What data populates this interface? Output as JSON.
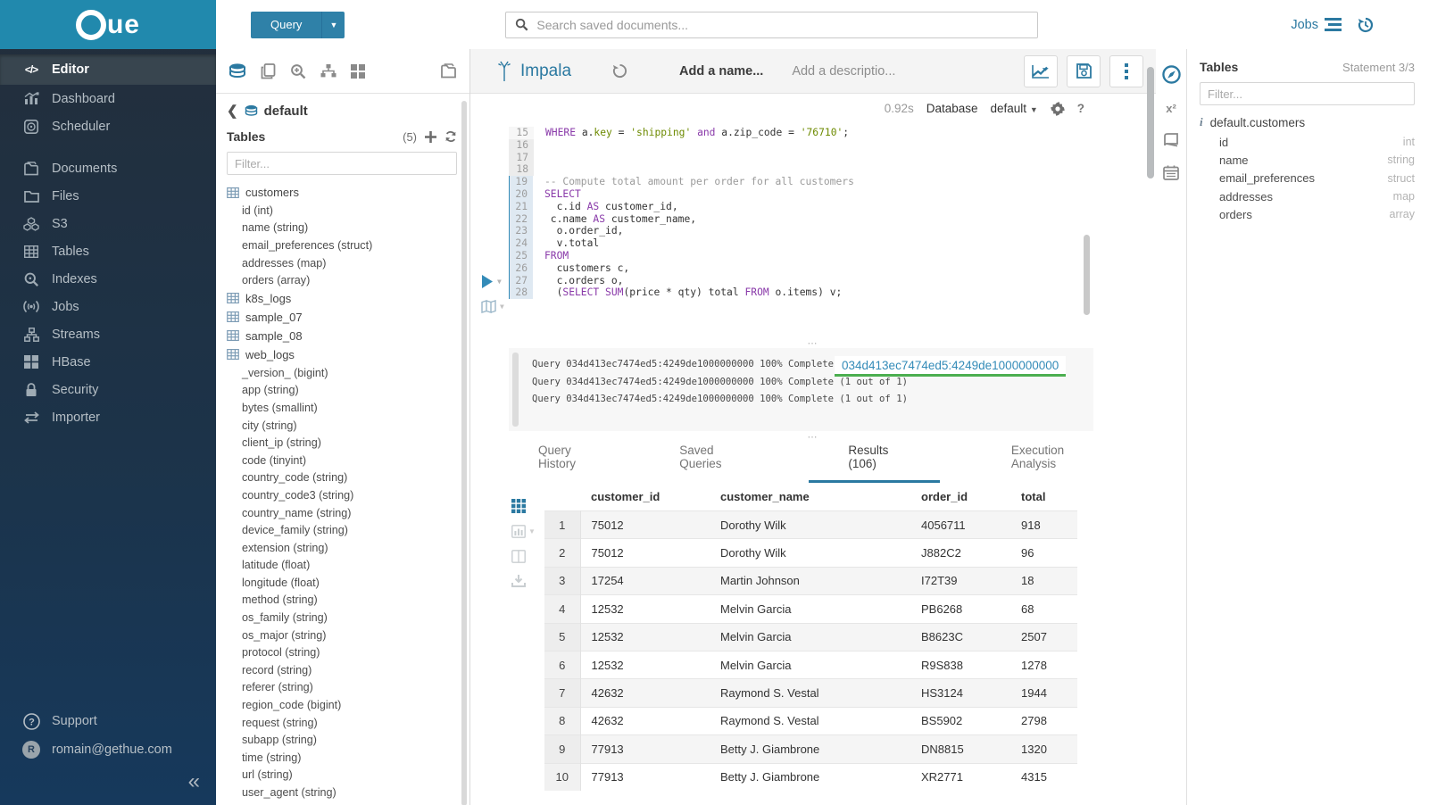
{
  "app": {
    "logo_text": "ue",
    "accent": "#338bb8",
    "masthead_color": "#2189ad"
  },
  "sidebar": {
    "items": [
      {
        "label": "Editor",
        "icon": "code-icon",
        "active": true
      },
      {
        "label": "Dashboard",
        "icon": "dashboard-icon",
        "active": false
      },
      {
        "label": "Scheduler",
        "icon": "scheduler-icon",
        "active": false
      },
      {
        "label": "Documents",
        "icon": "documents-icon",
        "active": false,
        "gap_before": true
      },
      {
        "label": "Files",
        "icon": "files-icon",
        "active": false
      },
      {
        "label": "S3",
        "icon": "s3-icon",
        "active": false
      },
      {
        "label": "Tables",
        "icon": "tables-icon",
        "active": false
      },
      {
        "label": "Indexes",
        "icon": "indexes-icon",
        "active": false
      },
      {
        "label": "Jobs",
        "icon": "jobs-icon",
        "active": false
      },
      {
        "label": "Streams",
        "icon": "streams-icon",
        "active": false
      },
      {
        "label": "HBase",
        "icon": "hbase-icon",
        "active": false
      },
      {
        "label": "Security",
        "icon": "security-icon",
        "active": false
      },
      {
        "label": "Importer",
        "icon": "importer-icon",
        "active": false
      }
    ],
    "footer": [
      {
        "label": "Support",
        "icon": "help-icon"
      },
      {
        "label": "romain@gethue.com",
        "icon": "avatar",
        "avatar_letter": "R"
      }
    ],
    "collapse_glyph": "«"
  },
  "topbar": {
    "query_button": "Query",
    "search_placeholder": "Search saved documents...",
    "jobs_label": "Jobs"
  },
  "assist_left": {
    "breadcrumb": "default",
    "title": "Tables",
    "count": "(5)",
    "filter_placeholder": "Filter...",
    "tree": [
      {
        "name": "customers",
        "columns": [
          "id (int)",
          "name (string)",
          "email_preferences (struct)",
          "addresses (map)",
          "orders (array)"
        ]
      },
      {
        "name": "k8s_logs",
        "columns": []
      },
      {
        "name": "sample_07",
        "columns": []
      },
      {
        "name": "sample_08",
        "columns": []
      },
      {
        "name": "web_logs",
        "columns": [
          "_version_ (bigint)",
          "app (string)",
          "bytes (smallint)",
          "city (string)",
          "client_ip (string)",
          "code (tinyint)",
          "country_code (string)",
          "country_code3 (string)",
          "country_name (string)",
          "device_family (string)",
          "extension (string)",
          "latitude (float)",
          "longitude (float)",
          "method (string)",
          "os_family (string)",
          "os_major (string)",
          "protocol (string)",
          "record (string)",
          "referer (string)",
          "region_code (bigint)",
          "request (string)",
          "subapp (string)",
          "time (string)",
          "url (string)",
          "user_agent (string)"
        ]
      }
    ]
  },
  "editor": {
    "engine": "Impala",
    "name_placeholder": "Add a name...",
    "desc_placeholder": "Add a descriptio...",
    "exec_time": "0.92s",
    "database_label": "Database",
    "database_value": "default",
    "lines": [
      {
        "n": 15,
        "g": "",
        "seg": [
          [
            "k",
            "WHERE"
          ],
          [
            "t",
            " a."
          ],
          [
            "o",
            "key"
          ],
          [
            "t",
            " = "
          ],
          [
            "s",
            "'shipping'"
          ],
          [
            "t",
            " "
          ],
          [
            "k",
            "and"
          ],
          [
            "t",
            " a.zip_code = "
          ],
          [
            "s",
            "'76710'"
          ],
          [
            "t",
            ";"
          ]
        ]
      },
      {
        "n": 16,
        "g": "dim",
        "seg": []
      },
      {
        "n": 17,
        "g": "dim",
        "seg": []
      },
      {
        "n": 18,
        "g": "dim",
        "seg": []
      },
      {
        "n": 19,
        "g": "act",
        "seg": [
          [
            "c",
            "-- Compute total amount per order for all customers"
          ]
        ]
      },
      {
        "n": 20,
        "g": "act",
        "seg": [
          [
            "k",
            "SELECT"
          ]
        ]
      },
      {
        "n": 21,
        "g": "act",
        "seg": [
          [
            "t",
            "  c.id "
          ],
          [
            "k",
            "AS"
          ],
          [
            "t",
            " customer_id,"
          ]
        ]
      },
      {
        "n": 22,
        "g": "act",
        "seg": [
          [
            "t",
            " c.name "
          ],
          [
            "k",
            "AS"
          ],
          [
            "t",
            " customer_name,"
          ]
        ]
      },
      {
        "n": 23,
        "g": "act",
        "seg": [
          [
            "t",
            "  o.order_id,"
          ]
        ]
      },
      {
        "n": 24,
        "g": "act",
        "seg": [
          [
            "t",
            "  v.total"
          ]
        ]
      },
      {
        "n": 25,
        "g": "act",
        "seg": [
          [
            "k",
            "FROM"
          ]
        ]
      },
      {
        "n": 26,
        "g": "act",
        "seg": [
          [
            "t",
            "  customers c,"
          ]
        ]
      },
      {
        "n": 27,
        "g": "act",
        "seg": [
          [
            "t",
            "  c.orders o,"
          ]
        ]
      },
      {
        "n": 28,
        "g": "act",
        "seg": [
          [
            "t",
            "  ("
          ],
          [
            "k",
            "SELECT"
          ],
          [
            "t",
            " "
          ],
          [
            "k",
            "SUM"
          ],
          [
            "t",
            "(price * qty) total "
          ],
          [
            "k",
            "FROM"
          ],
          [
            "t",
            " o.items) v;"
          ]
        ]
      }
    ]
  },
  "log": {
    "lines": [
      "Query 034d413ec7474ed5:4249de1000000000 100% Complete (1 out of 1)",
      "Query 034d413ec7474ed5:4249de1000000000 100% Complete (1 out of 1)",
      "Query 034d413ec7474ed5:4249de1000000000 100% Complete (1 out of 1)"
    ],
    "overlay_link": "034d413ec7474ed5:4249de1000000000",
    "splitter_glyph": "⋯"
  },
  "tabs": [
    {
      "label": "Query History",
      "active": false
    },
    {
      "label": "Saved Queries",
      "active": false
    },
    {
      "label": "Results (106)",
      "active": true
    },
    {
      "label": "Execution Analysis",
      "active": false
    }
  ],
  "results": {
    "headers": [
      "customer_id",
      "customer_name",
      "order_id",
      "total"
    ],
    "rows": [
      [
        "1",
        "75012",
        "Dorothy Wilk",
        "4056711",
        "918"
      ],
      [
        "2",
        "75012",
        "Dorothy Wilk",
        "J882C2",
        "96"
      ],
      [
        "3",
        "17254",
        "Martin Johnson",
        "I72T39",
        "18"
      ],
      [
        "4",
        "12532",
        "Melvin Garcia",
        "PB6268",
        "68"
      ],
      [
        "5",
        "12532",
        "Melvin Garcia",
        "B8623C",
        "2507"
      ],
      [
        "6",
        "12532",
        "Melvin Garcia",
        "R9S838",
        "1278"
      ],
      [
        "7",
        "42632",
        "Raymond S. Vestal",
        "HS3124",
        "1944"
      ],
      [
        "8",
        "42632",
        "Raymond S. Vestal",
        "BS5902",
        "2798"
      ],
      [
        "9",
        "77913",
        "Betty J. Giambrone",
        "DN8815",
        "1320"
      ],
      [
        "10",
        "77913",
        "Betty J. Giambrone",
        "XR2771",
        "4315"
      ]
    ]
  },
  "assist_right": {
    "title": "Tables",
    "statement": "Statement 3/3",
    "filter_placeholder": "Filter...",
    "table_name": "default.customers",
    "columns": [
      {
        "name": "id",
        "type": "int"
      },
      {
        "name": "name",
        "type": "string"
      },
      {
        "name": "email_preferences",
        "type": "struct"
      },
      {
        "name": "addresses",
        "type": "map"
      },
      {
        "name": "orders",
        "type": "array"
      }
    ]
  }
}
